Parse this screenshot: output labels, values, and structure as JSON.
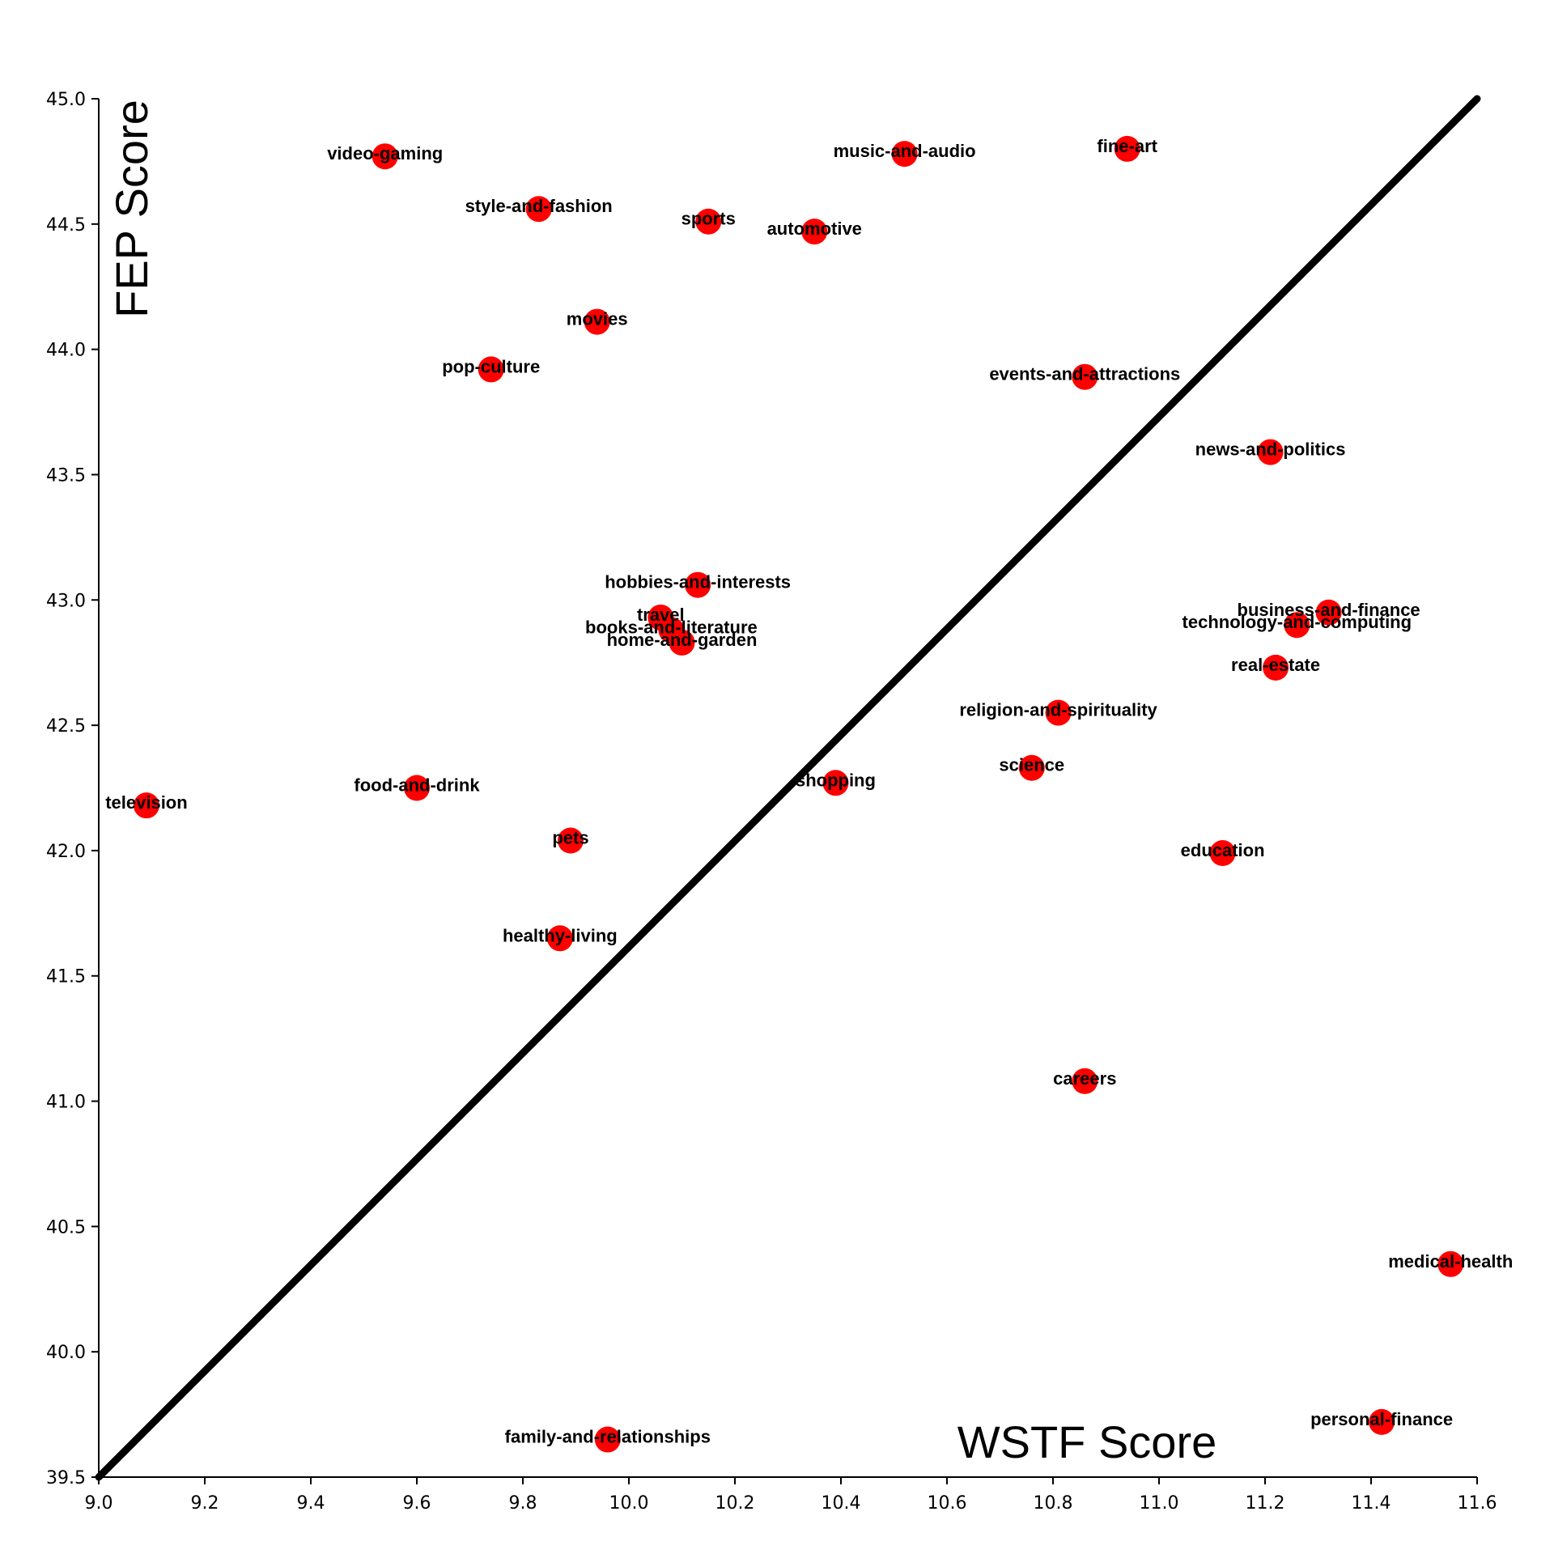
{
  "chart_data": {
    "type": "scatter",
    "xlabel": "WSTF Score",
    "ylabel": "FEP Score",
    "xlim": [
      9.0,
      11.6
    ],
    "ylim": [
      39.5,
      45.0
    ],
    "x_ticks": [
      "9.0",
      "9.2",
      "9.4",
      "9.6",
      "9.8",
      "10.0",
      "10.2",
      "10.4",
      "10.6",
      "10.8",
      "11.0",
      "11.2",
      "11.4",
      "11.6"
    ],
    "y_ticks": [
      "39.5",
      "40.0",
      "40.5",
      "41.0",
      "41.5",
      "42.0",
      "42.5",
      "43.0",
      "43.5",
      "44.0",
      "44.5",
      "45.0"
    ],
    "reference_line": {
      "from": [
        9.0,
        39.5
      ],
      "to": [
        11.6,
        45.0
      ]
    },
    "point_color": "#ff0000",
    "points": [
      {
        "label": "video-gaming",
        "x": 9.54,
        "y": 44.77
      },
      {
        "label": "music-and-audio",
        "x": 10.52,
        "y": 44.78
      },
      {
        "label": "fine-art",
        "x": 10.94,
        "y": 44.8
      },
      {
        "label": "style-and-fashion",
        "x": 9.83,
        "y": 44.56
      },
      {
        "label": "sports",
        "x": 10.15,
        "y": 44.51
      },
      {
        "label": "automotive",
        "x": 10.35,
        "y": 44.47
      },
      {
        "label": "movies",
        "x": 9.94,
        "y": 44.11
      },
      {
        "label": "pop-culture",
        "x": 9.74,
        "y": 43.92
      },
      {
        "label": "events-and-attractions",
        "x": 10.86,
        "y": 43.89
      },
      {
        "label": "news-and-politics",
        "x": 11.21,
        "y": 43.59
      },
      {
        "label": "hobbies-and-interests",
        "x": 10.13,
        "y": 43.06
      },
      {
        "label": "travel",
        "x": 10.06,
        "y": 42.93
      },
      {
        "label": "books-and-literature",
        "x": 10.08,
        "y": 42.88
      },
      {
        "label": "home-and-garden",
        "x": 10.1,
        "y": 42.83
      },
      {
        "label": "business-and-finance",
        "x": 11.32,
        "y": 42.95
      },
      {
        "label": "technology-and-computing",
        "x": 11.26,
        "y": 42.9
      },
      {
        "label": "real-estate",
        "x": 11.22,
        "y": 42.73
      },
      {
        "label": "religion-and-spirituality",
        "x": 10.81,
        "y": 42.55
      },
      {
        "label": "science",
        "x": 10.76,
        "y": 42.33
      },
      {
        "label": "shopping",
        "x": 10.39,
        "y": 42.27
      },
      {
        "label": "food-and-drink",
        "x": 9.6,
        "y": 42.25
      },
      {
        "label": "television",
        "x": 9.09,
        "y": 42.18
      },
      {
        "label": "pets",
        "x": 9.89,
        "y": 42.04
      },
      {
        "label": "education",
        "x": 11.12,
        "y": 41.99
      },
      {
        "label": "healthy-living",
        "x": 9.87,
        "y": 41.65
      },
      {
        "label": "careers",
        "x": 10.86,
        "y": 41.08
      },
      {
        "label": "medical-health",
        "x": 11.55,
        "y": 40.35
      },
      {
        "label": "personal-finance",
        "x": 11.42,
        "y": 39.72
      },
      {
        "label": "family-and-relationships",
        "x": 9.96,
        "y": 39.65
      }
    ]
  }
}
